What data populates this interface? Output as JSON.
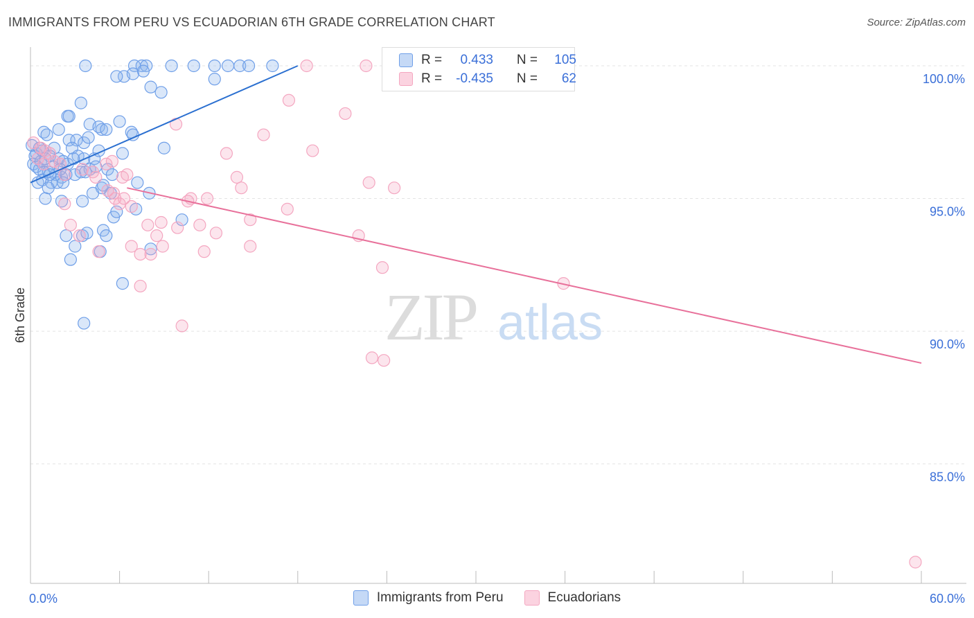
{
  "chart_data": {
    "type": "scatter",
    "title": "IMMIGRANTS FROM PERU VS ECUADORIAN 6TH GRADE CORRELATION CHART",
    "source": "Source: ZipAtlas.com",
    "ylabel": "6th Grade",
    "xlim": [
      0,
      60
    ],
    "ylim": [
      80.5,
      100.6
    ],
    "x_tick_labels": [
      "0.0%",
      "60.0%"
    ],
    "y_ticks": [
      {
        "value": 100,
        "label": "100.0%"
      },
      {
        "value": 95,
        "label": "95.0%"
      },
      {
        "value": 90,
        "label": "90.0%"
      },
      {
        "value": 85,
        "label": "85.0%"
      }
    ],
    "watermark": "ZIPatlas",
    "series": [
      {
        "name": "Immigrants from Peru",
        "color": "#6f9fe8",
        "line_color": "#2a6fd0",
        "R": "0.433",
        "N": "105",
        "trend": [
          [
            0,
            95.6
          ],
          [
            18,
            100.0
          ]
        ],
        "points": [
          [
            3.7,
            100
          ],
          [
            7.0,
            100
          ],
          [
            7.5,
            100
          ],
          [
            7.8,
            100
          ],
          [
            9.5,
            100
          ],
          [
            11.0,
            100
          ],
          [
            12.4,
            100
          ],
          [
            13.3,
            100
          ],
          [
            14.1,
            100
          ],
          [
            14.7,
            100
          ],
          [
            16.3,
            100
          ],
          [
            6.3,
            99.6
          ],
          [
            6.9,
            99.7
          ],
          [
            7.6,
            99.8
          ],
          [
            5.8,
            99.6
          ],
          [
            12.4,
            99.5
          ],
          [
            8.1,
            99.2
          ],
          [
            8.8,
            99.0
          ],
          [
            3.4,
            98.6
          ],
          [
            2.5,
            98.1
          ],
          [
            2.6,
            98.1
          ],
          [
            4.0,
            97.8
          ],
          [
            4.6,
            97.7
          ],
          [
            4.8,
            97.6
          ],
          [
            5.1,
            97.6
          ],
          [
            6.0,
            97.9
          ],
          [
            6.8,
            97.5
          ],
          [
            6.9,
            97.4
          ],
          [
            0.9,
            97.5
          ],
          [
            1.1,
            97.4
          ],
          [
            1.9,
            97.6
          ],
          [
            2.6,
            97.2
          ],
          [
            3.1,
            97.2
          ],
          [
            3.6,
            97.1
          ],
          [
            3.9,
            97.3
          ],
          [
            2.8,
            96.9
          ],
          [
            1.6,
            96.9
          ],
          [
            0.1,
            97.0
          ],
          [
            0.4,
            96.7
          ],
          [
            0.8,
            96.8
          ],
          [
            1.3,
            96.6
          ],
          [
            1.9,
            96.5
          ],
          [
            2.2,
            96.4
          ],
          [
            2.5,
            96.3
          ],
          [
            3.2,
            96.6
          ],
          [
            3.6,
            96.5
          ],
          [
            4.3,
            96.5
          ],
          [
            4.6,
            96.8
          ],
          [
            6.2,
            96.7
          ],
          [
            9.0,
            96.9
          ],
          [
            0.2,
            96.3
          ],
          [
            0.4,
            96.2
          ],
          [
            0.6,
            96.1
          ],
          [
            0.9,
            96.0
          ],
          [
            1.2,
            96.0
          ],
          [
            1.7,
            95.9
          ],
          [
            2.1,
            95.8
          ],
          [
            2.4,
            95.9
          ],
          [
            3.0,
            95.9
          ],
          [
            3.4,
            96.0
          ],
          [
            4.0,
            96.1
          ],
          [
            4.4,
            96.2
          ],
          [
            5.2,
            96.1
          ],
          [
            5.5,
            95.9
          ],
          [
            0.5,
            95.6
          ],
          [
            0.8,
            95.7
          ],
          [
            1.4,
            95.6
          ],
          [
            1.8,
            95.6
          ],
          [
            2.2,
            95.6
          ],
          [
            4.8,
            95.4
          ],
          [
            5.4,
            95.2
          ],
          [
            7.2,
            95.6
          ],
          [
            8.0,
            95.2
          ],
          [
            1.0,
            95.0
          ],
          [
            1.2,
            95.4
          ],
          [
            2.1,
            94.9
          ],
          [
            3.5,
            94.9
          ],
          [
            4.2,
            95.2
          ],
          [
            5.6,
            94.3
          ],
          [
            5.8,
            94.5
          ],
          [
            7.1,
            94.6
          ],
          [
            10.2,
            94.2
          ],
          [
            2.4,
            93.6
          ],
          [
            3.5,
            93.6
          ],
          [
            3.8,
            93.7
          ],
          [
            4.9,
            93.8
          ],
          [
            5.1,
            93.6
          ],
          [
            3.0,
            93.2
          ],
          [
            4.7,
            93.0
          ],
          [
            8.1,
            93.1
          ],
          [
            2.7,
            92.7
          ],
          [
            6.2,
            91.8
          ],
          [
            3.6,
            90.3
          ],
          [
            0.3,
            96.6
          ],
          [
            0.7,
            96.4
          ],
          [
            1.5,
            96.2
          ],
          [
            2.0,
            96.1
          ],
          [
            1.0,
            96.5
          ],
          [
            2.9,
            96.5
          ],
          [
            0.6,
            96.9
          ],
          [
            4.9,
            95.5
          ],
          [
            3.7,
            96.0
          ],
          [
            1.3,
            95.9
          ]
        ]
      },
      {
        "name": "Ecuadorians",
        "color": "#f4a6c0",
        "line_color": "#e8709a",
        "R": "-0.435",
        "N": "62",
        "trend": [
          [
            6.5,
            95.4
          ],
          [
            60,
            88.8
          ]
        ],
        "points": [
          [
            18.6,
            100
          ],
          [
            22.6,
            100
          ],
          [
            17.4,
            98.7
          ],
          [
            21.2,
            98.2
          ],
          [
            9.8,
            97.8
          ],
          [
            15.7,
            97.4
          ],
          [
            13.2,
            96.7
          ],
          [
            19.0,
            96.8
          ],
          [
            0.2,
            97.1
          ],
          [
            0.7,
            96.9
          ],
          [
            1.0,
            96.8
          ],
          [
            1.3,
            96.7
          ],
          [
            0.5,
            96.5
          ],
          [
            1.6,
            96.4
          ],
          [
            2.0,
            96.3
          ],
          [
            0.9,
            96.3
          ],
          [
            5.1,
            96.3
          ],
          [
            5.5,
            96.4
          ],
          [
            3.5,
            96.1
          ],
          [
            4.2,
            96.0
          ],
          [
            2.3,
            95.9
          ],
          [
            6.5,
            95.9
          ],
          [
            4.4,
            95.8
          ],
          [
            6.2,
            95.8
          ],
          [
            13.9,
            95.8
          ],
          [
            14.2,
            95.4
          ],
          [
            22.8,
            95.6
          ],
          [
            24.5,
            95.4
          ],
          [
            5.2,
            95.3
          ],
          [
            5.6,
            95.2
          ],
          [
            5.7,
            95.0
          ],
          [
            6.3,
            95.0
          ],
          [
            10.6,
            94.9
          ],
          [
            10.8,
            95.0
          ],
          [
            11.9,
            95.0
          ],
          [
            17.3,
            94.6
          ],
          [
            14.8,
            94.2
          ],
          [
            2.3,
            94.8
          ],
          [
            6.0,
            94.8
          ],
          [
            6.8,
            94.7
          ],
          [
            2.7,
            94.0
          ],
          [
            7.9,
            94.0
          ],
          [
            8.8,
            94.1
          ],
          [
            9.9,
            93.9
          ],
          [
            11.4,
            94.0
          ],
          [
            12.5,
            93.7
          ],
          [
            3.3,
            93.6
          ],
          [
            8.5,
            93.6
          ],
          [
            22.1,
            93.6
          ],
          [
            6.8,
            93.2
          ],
          [
            8.9,
            93.2
          ],
          [
            14.8,
            93.2
          ],
          [
            4.6,
            93.0
          ],
          [
            7.4,
            92.9
          ],
          [
            8.1,
            92.9
          ],
          [
            11.7,
            93.0
          ],
          [
            23.7,
            92.4
          ],
          [
            35.9,
            91.8
          ],
          [
            7.4,
            91.7
          ],
          [
            10.2,
            90.2
          ],
          [
            23.0,
            89.0
          ],
          [
            23.8,
            88.9
          ],
          [
            59.6,
            81.3
          ]
        ]
      }
    ]
  }
}
